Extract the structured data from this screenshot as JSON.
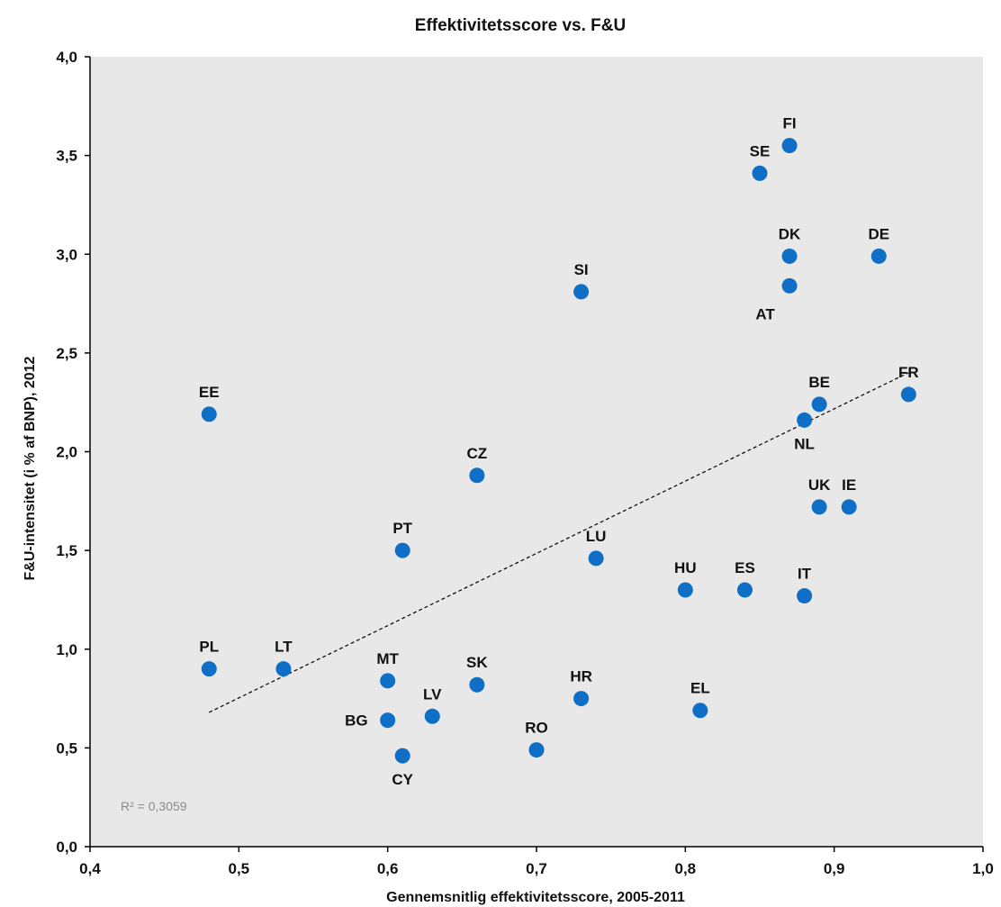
{
  "chart_data": {
    "type": "scatter",
    "title": "Effektivitetsscore vs. F&U",
    "xlabel": "Gennemsnitlig effektivitetsscore, 2005-2011",
    "ylabel": "F&U-intensitet (i % af BNP), 2012",
    "xlim": [
      0.4,
      1.0
    ],
    "ylim": [
      0.0,
      4.0
    ],
    "x_ticks": [
      0.4,
      0.5,
      0.6,
      0.7,
      0.8,
      0.9,
      1.0
    ],
    "y_ticks": [
      0.0,
      0.5,
      1.0,
      1.5,
      2.0,
      2.5,
      3.0,
      3.5,
      4.0
    ],
    "x_tick_labels": [
      "0,4",
      "0,5",
      "0,6",
      "0,7",
      "0,8",
      "0,9",
      "1,0"
    ],
    "y_tick_labels": [
      "0,0",
      "0,5",
      "1,0",
      "1,5",
      "2,0",
      "2,5",
      "3,0",
      "3,5",
      "4,0"
    ],
    "grid": false,
    "plot_background": "#e8e8e8",
    "point_color": "#0f6fc6",
    "points": [
      {
        "label": "FI",
        "x": 0.87,
        "y": 3.55,
        "label_pos": "above"
      },
      {
        "label": "SE",
        "x": 0.85,
        "y": 3.41,
        "label_pos": "above"
      },
      {
        "label": "DK",
        "x": 0.87,
        "y": 2.99,
        "label_pos": "above"
      },
      {
        "label": "DE",
        "x": 0.93,
        "y": 2.99,
        "label_pos": "above"
      },
      {
        "label": "AT",
        "x": 0.87,
        "y": 2.84,
        "label_pos": "below-left"
      },
      {
        "label": "SI",
        "x": 0.73,
        "y": 2.81,
        "label_pos": "above"
      },
      {
        "label": "FR",
        "x": 0.95,
        "y": 2.29,
        "label_pos": "above"
      },
      {
        "label": "BE",
        "x": 0.89,
        "y": 2.24,
        "label_pos": "above"
      },
      {
        "label": "NL",
        "x": 0.88,
        "y": 2.16,
        "label_pos": "below"
      },
      {
        "label": "EE",
        "x": 0.48,
        "y": 2.19,
        "label_pos": "above"
      },
      {
        "label": "CZ",
        "x": 0.66,
        "y": 1.88,
        "label_pos": "above"
      },
      {
        "label": "UK",
        "x": 0.89,
        "y": 1.72,
        "label_pos": "above"
      },
      {
        "label": "IE",
        "x": 0.91,
        "y": 1.72,
        "label_pos": "above"
      },
      {
        "label": "PT",
        "x": 0.61,
        "y": 1.5,
        "label_pos": "above"
      },
      {
        "label": "LU",
        "x": 0.74,
        "y": 1.46,
        "label_pos": "above"
      },
      {
        "label": "HU",
        "x": 0.8,
        "y": 1.3,
        "label_pos": "above"
      },
      {
        "label": "ES",
        "x": 0.84,
        "y": 1.3,
        "label_pos": "above"
      },
      {
        "label": "IT",
        "x": 0.88,
        "y": 1.27,
        "label_pos": "above"
      },
      {
        "label": "PL",
        "x": 0.48,
        "y": 0.9,
        "label_pos": "above"
      },
      {
        "label": "LT",
        "x": 0.53,
        "y": 0.9,
        "label_pos": "above"
      },
      {
        "label": "MT",
        "x": 0.6,
        "y": 0.84,
        "label_pos": "above"
      },
      {
        "label": "SK",
        "x": 0.66,
        "y": 0.82,
        "label_pos": "above"
      },
      {
        "label": "HR",
        "x": 0.73,
        "y": 0.75,
        "label_pos": "above"
      },
      {
        "label": "EL",
        "x": 0.81,
        "y": 0.69,
        "label_pos": "above"
      },
      {
        "label": "LV",
        "x": 0.63,
        "y": 0.66,
        "label_pos": "above"
      },
      {
        "label": "BG",
        "x": 0.6,
        "y": 0.64,
        "label_pos": "left"
      },
      {
        "label": "RO",
        "x": 0.7,
        "y": 0.49,
        "label_pos": "above"
      },
      {
        "label": "CY",
        "x": 0.61,
        "y": 0.46,
        "label_pos": "below"
      }
    ],
    "trendline": {
      "style": "dashed",
      "x": [
        0.48,
        0.95
      ],
      "y": [
        0.68,
        2.4
      ]
    },
    "annotation": "R² = 0,3059"
  }
}
